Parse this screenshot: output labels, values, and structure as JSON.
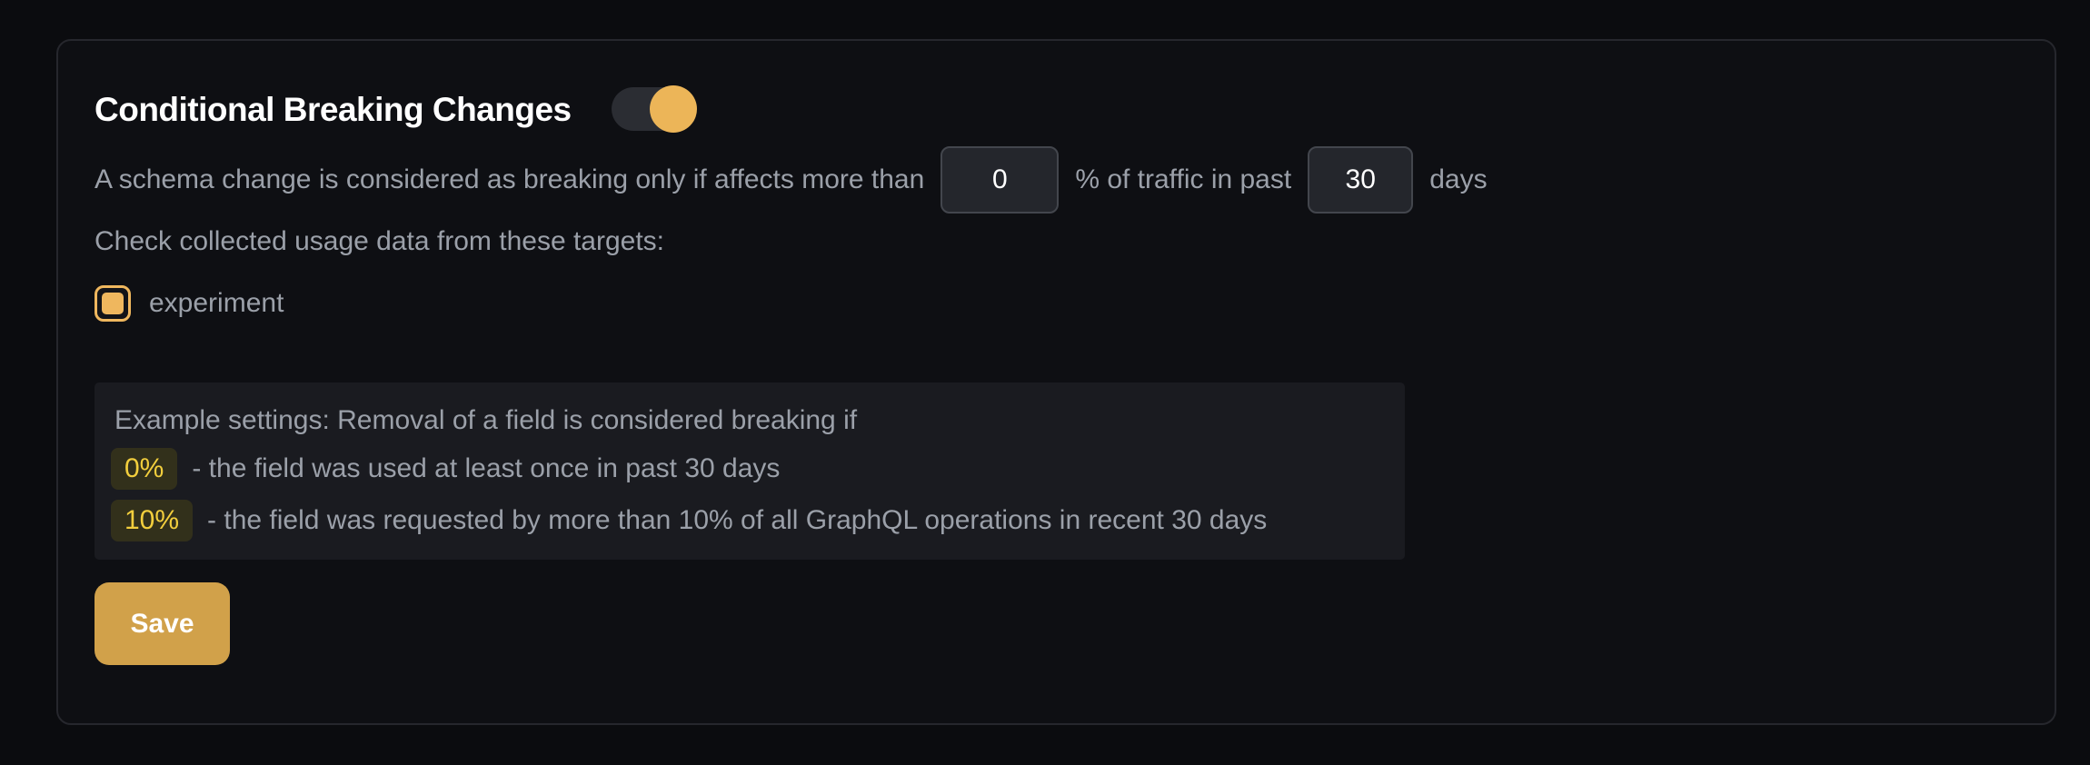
{
  "panel": {
    "title": "Conditional Breaking Changes",
    "toggle": {
      "name": "conditional-breaking-changes",
      "state": "on"
    },
    "description": {
      "part1": "A schema change is considered as breaking only if affects more than",
      "percent_value": "0",
      "part2": "% of traffic in past",
      "days_value": "30",
      "part3": "days"
    },
    "targets": {
      "label": "Check collected usage data from these targets:",
      "items": [
        {
          "name": "experiment",
          "checked": true
        }
      ]
    },
    "example": {
      "intro": "Example settings: Removal of a field is considered breaking if",
      "rules": [
        {
          "badge": "0%",
          "text": "- the field was used at least once in past 30 days"
        },
        {
          "badge": "10%",
          "text": "- the field was requested by more than 10% of all GraphQL operations in recent 30 days"
        }
      ]
    },
    "save_label": "Save"
  },
  "colors": {
    "accent": "#ecb558",
    "badge_text": "#f2ce3d",
    "badge_bg": "#32301b",
    "save_bg": "#d1a14a",
    "muted_text": "#9ba0a9",
    "panel_bg": "#0e0f13",
    "page_bg": "#0b0c0f"
  }
}
